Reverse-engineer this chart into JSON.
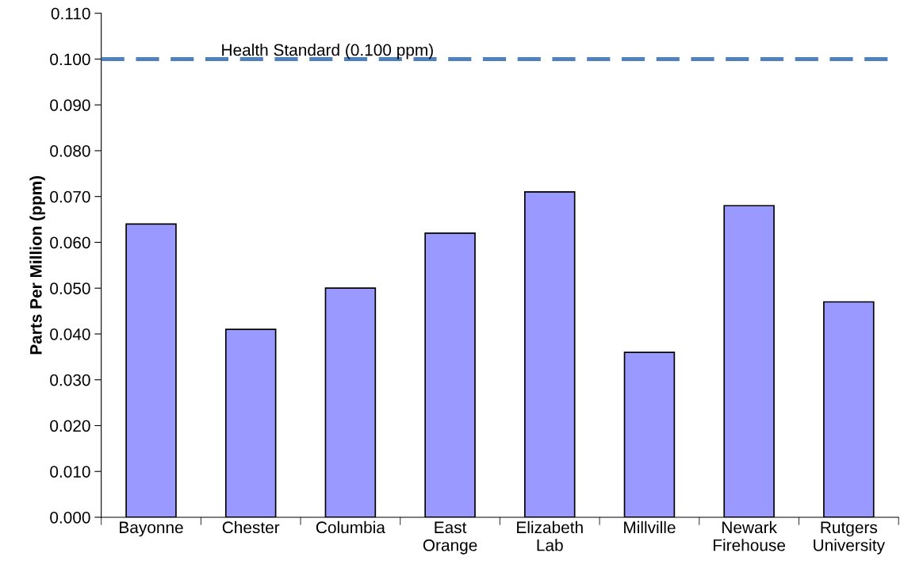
{
  "chart_data": {
    "type": "bar",
    "ylabel": "Parts Per Million (ppm)",
    "categories": [
      "Bayonne",
      "Chester",
      "Columbia",
      "East Orange",
      "Elizabeth Lab",
      "Millville",
      "Newark Firehouse",
      "Rutgers University"
    ],
    "values": [
      0.064,
      0.041,
      0.05,
      0.062,
      0.071,
      0.036,
      0.068,
      0.047
    ],
    "color": "#9999ff",
    "ylim": [
      0,
      0.11
    ],
    "yticks": [
      {
        "value": 0,
        "label": "0.000"
      },
      {
        "value": 0.01,
        "label": "0.010"
      },
      {
        "value": 0.02,
        "label": "0.020"
      },
      {
        "value": 0.03,
        "label": "0.030"
      },
      {
        "value": 0.04,
        "label": "0.040"
      },
      {
        "value": 0.05,
        "label": "0.050"
      },
      {
        "value": 0.06,
        "label": "0.060"
      },
      {
        "value": 0.07,
        "label": "0.070"
      },
      {
        "value": 0.08,
        "label": "0.080"
      },
      {
        "value": 0.09,
        "label": "0.090"
      },
      {
        "value": 0.1,
        "label": "0.100"
      },
      {
        "value": 0.11,
        "label": "0.110"
      }
    ],
    "ref_lines": [
      {
        "axis": "y",
        "value": 0.1,
        "label": "Health Standard (0.100 ppm)",
        "color": "#4f81bd",
        "line_style": "dashed"
      }
    ],
    "grid": false,
    "legend": false
  }
}
